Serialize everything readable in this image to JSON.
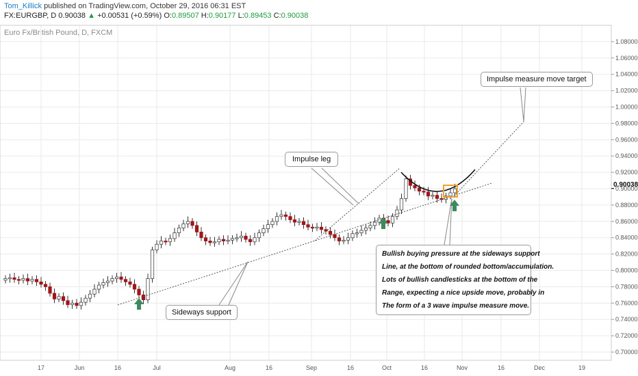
{
  "header": {
    "author": "Tom_Killick",
    "published_text": "published on TradingView.com, October 29, 2016 06:31 EST",
    "symbol": "FX:EURGBP, D",
    "last": "0.90038",
    "change_arrow": "▲",
    "change": "+0.00531 (+0.59%)",
    "o_label": "O:",
    "o_value": "0.89507",
    "h_label": "H:",
    "h_value": "0.90177",
    "l_label": "L:",
    "l_value": "0.89453",
    "c_label": "C:",
    "c_value": "0.90038"
  },
  "chart_title": "Euro Fx/British Pound, D, FXCM",
  "current_price": "0.90038",
  "colors": {
    "bull_body": "#ffffff",
    "bear_body": "#a3151b",
    "wick": "#333333",
    "grid": "#eaeaea",
    "arrow": "#3c8a5e",
    "highlight_box": "#f0a030",
    "curve": "#111111"
  },
  "annotations": {
    "impulse_leg": "Impulse leg",
    "impulse_target": "Impulse measure move target",
    "sideways_support": "Sideways support",
    "bullish_lines": [
      "Bullish buying pressure at the sideways support",
      "Line, at the bottom of rounded bottom/accumulation.",
      "Lots of bullish candlesticks at the bottom of the",
      "Range, expecting a nice upside move, probably in",
      "The form of a 3 wave impulse measure move."
    ]
  },
  "chart_data": {
    "type": "candlestick",
    "title": "Euro Fx/British Pound, D, FXCM",
    "ylim": [
      0.69,
      1.1
    ],
    "y_ticks": [
      "1.08000",
      "1.06000",
      "1.04000",
      "1.02000",
      "1.00000",
      "0.98000",
      "0.96000",
      "0.94000",
      "0.92000",
      "0.90000",
      "0.88000",
      "0.86000",
      "0.84000",
      "0.82000",
      "0.80000",
      "0.78000",
      "0.76000",
      "0.74000",
      "0.72000",
      "0.70000"
    ],
    "x_ticks": [
      "17",
      "Jun",
      "16",
      "Jul",
      "Aug",
      "16",
      "Sep",
      "16",
      "Oct",
      "16",
      "Nov",
      "16",
      "Dec",
      "19"
    ],
    "grid": true,
    "series_close": [
      0.79,
      0.791,
      0.789,
      0.788,
      0.79,
      0.787,
      0.789,
      0.786,
      0.783,
      0.78,
      0.772,
      0.765,
      0.768,
      0.763,
      0.758,
      0.76,
      0.757,
      0.761,
      0.766,
      0.771,
      0.777,
      0.782,
      0.785,
      0.787,
      0.79,
      0.792,
      0.789,
      0.786,
      0.783,
      0.777,
      0.77,
      0.764,
      0.79,
      0.825,
      0.832,
      0.836,
      0.835,
      0.839,
      0.846,
      0.852,
      0.857,
      0.86,
      0.855,
      0.847,
      0.84,
      0.836,
      0.834,
      0.835,
      0.838,
      0.836,
      0.837,
      0.839,
      0.84,
      0.842,
      0.838,
      0.835,
      0.84,
      0.846,
      0.851,
      0.856,
      0.86,
      0.866,
      0.868,
      0.866,
      0.862,
      0.859,
      0.86,
      0.856,
      0.853,
      0.852,
      0.853,
      0.85,
      0.848,
      0.844,
      0.84,
      0.836,
      0.837,
      0.84,
      0.845,
      0.846,
      0.849,
      0.852,
      0.855,
      0.859,
      0.864,
      0.861,
      0.858,
      0.866,
      0.874,
      0.888,
      0.912,
      0.904,
      0.901,
      0.897,
      0.896,
      0.891,
      0.892,
      0.888,
      0.887,
      0.891,
      0.895,
      0.9
    ]
  }
}
